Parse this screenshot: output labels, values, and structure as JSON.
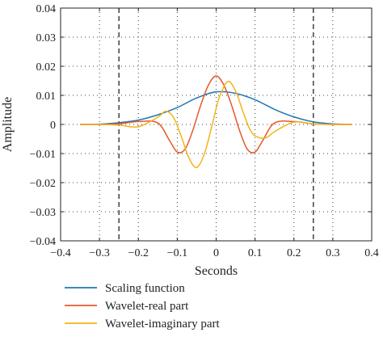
{
  "chart_data": {
    "type": "line",
    "title": "",
    "xlabel": "Seconds",
    "ylabel": "Amplitude",
    "xlim": [
      -0.4,
      0.4
    ],
    "ylim": [
      -0.04,
      0.04
    ],
    "xticks": [
      -0.4,
      -0.3,
      -0.2,
      -0.1,
      0,
      0.1,
      0.2,
      0.3,
      0.4
    ],
    "xtick_labels": [
      "−0.4",
      "−0.3",
      "−0.2",
      "−0.1",
      "0",
      "0.1",
      "0.2",
      "0.3",
      "0.4"
    ],
    "yticks": [
      -0.04,
      -0.03,
      -0.02,
      -0.01,
      0,
      0.01,
      0.02,
      0.03,
      0.04
    ],
    "ytick_labels": [
      "−0.04",
      "−0.03",
      "−0.02",
      "−0.01",
      "0",
      "0.01",
      "0.02",
      "0.03",
      "0.04"
    ],
    "grid": "dotted",
    "legend_position": "below-left",
    "vlines": [
      {
        "x": -0.25,
        "style": "dashed",
        "color": "#222222"
      },
      {
        "x": 0.25,
        "style": "dashed",
        "color": "#222222"
      }
    ],
    "series": [
      {
        "name": "Scaling function",
        "color": "#1f77b4",
        "x": [
          -0.35,
          -0.3,
          -0.25,
          -0.2,
          -0.15,
          -0.1,
          -0.05,
          0.0,
          0.05,
          0.1,
          0.15,
          0.2,
          0.25,
          0.3,
          0.35
        ],
        "y": [
          0.0,
          0.0001,
          0.0006,
          0.0015,
          0.0033,
          0.0058,
          0.0091,
          0.0112,
          0.0107,
          0.0085,
          0.0052,
          0.0026,
          0.0009,
          0.0002,
          0.0
        ]
      },
      {
        "name": "Wavelet-real part",
        "color": "#e8582a",
        "x": [
          -0.35,
          -0.3,
          -0.25,
          -0.2,
          -0.15,
          -0.12,
          -0.1,
          -0.08,
          -0.06,
          -0.04,
          -0.02,
          0.0,
          0.02,
          0.04,
          0.06,
          0.08,
          0.1,
          0.12,
          0.15,
          0.2,
          0.25,
          0.3,
          0.35
        ],
        "y": [
          0.0,
          0.0,
          0.0002,
          0.001,
          0.0005,
          -0.0055,
          -0.0095,
          -0.0085,
          -0.002,
          0.0065,
          0.0135,
          0.0167,
          0.0135,
          0.0065,
          -0.002,
          -0.0085,
          -0.0095,
          -0.0055,
          0.0005,
          0.001,
          0.0002,
          0.0,
          0.0
        ]
      },
      {
        "name": "Wavelet-imaginary part",
        "color": "#f2b418",
        "x": [
          -0.35,
          -0.3,
          -0.25,
          -0.2,
          -0.15,
          -0.13,
          -0.11,
          -0.09,
          -0.07,
          -0.05,
          -0.03,
          -0.01,
          0.0,
          0.01,
          0.03,
          0.05,
          0.07,
          0.09,
          0.11,
          0.13,
          0.15,
          0.2,
          0.25,
          0.3,
          0.35
        ],
        "y": [
          0.0,
          0.0,
          -0.0002,
          -0.0008,
          0.0025,
          0.0045,
          0.0025,
          -0.004,
          -0.0115,
          -0.0148,
          -0.01,
          0.0,
          0.0055,
          0.01,
          0.0148,
          0.0115,
          0.004,
          -0.0025,
          -0.0045,
          -0.0045,
          -0.0025,
          0.0008,
          0.0002,
          0.0,
          0.0
        ]
      }
    ]
  }
}
